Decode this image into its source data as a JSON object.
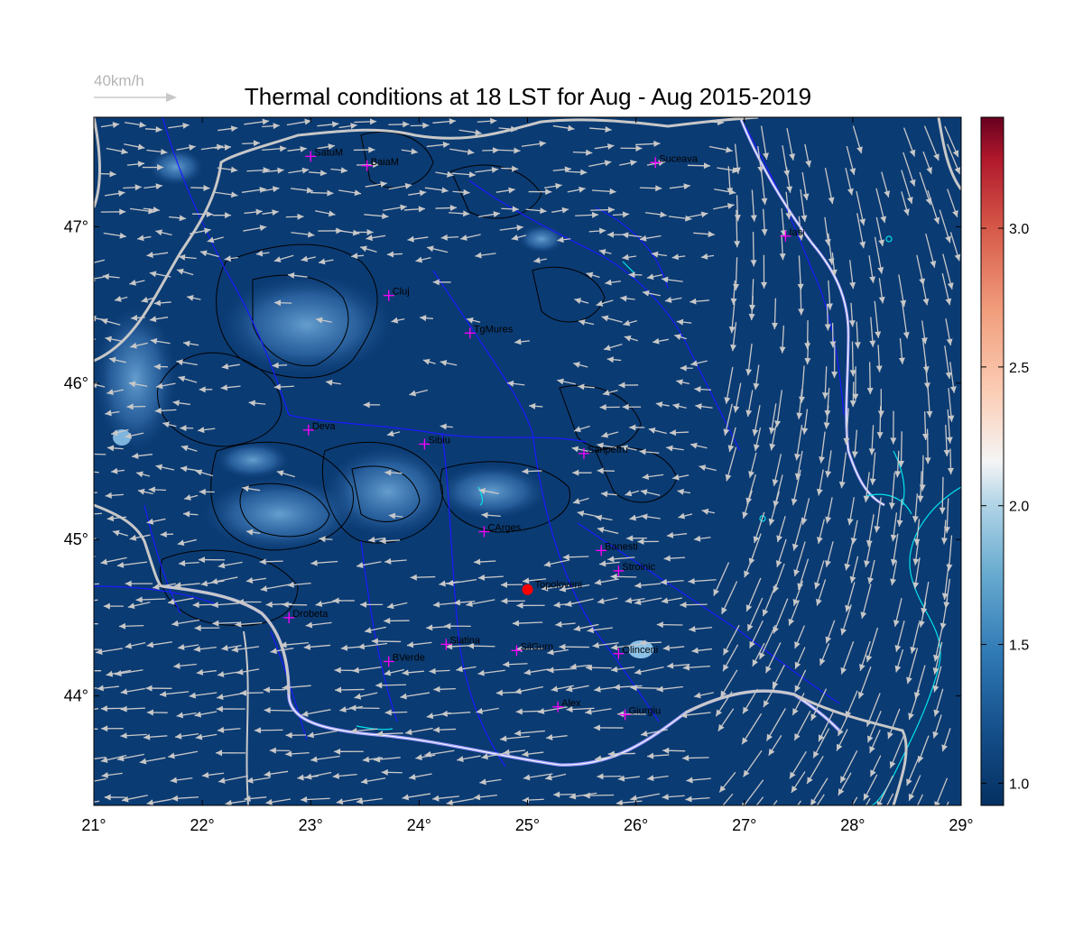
{
  "title": "Thermal conditions at 18 LST for Aug - Aug  2015-2019",
  "wind_scale": {
    "label": "40km/h",
    "speed_kmh": 40
  },
  "map": {
    "lon_range": [
      21,
      29
    ],
    "lat_range": [
      43.3,
      47.7
    ],
    "lon_ticks": [
      "21°",
      "22°",
      "23°",
      "24°",
      "25°",
      "26°",
      "27°",
      "28°",
      "29°"
    ],
    "lat_ticks": [
      {
        "lat": 47,
        "label": "47°"
      },
      {
        "lat": 46,
        "label": "46°"
      },
      {
        "lat": 45,
        "label": "45°"
      },
      {
        "lat": 44,
        "label": "44°"
      }
    ],
    "colors": {
      "background_field": "#0b3b73",
      "river": "#1a1aff",
      "border": "#c8c8c8",
      "lake": "#00e5ee",
      "city_marker": "#ff00ff",
      "highlight": "#ff0000",
      "wind_arrow": "#c8c8c8"
    }
  },
  "colorbar": {
    "min": 0.92,
    "max": 3.4,
    "ticks": [
      "1.0",
      "1.5",
      "2.0",
      "2.5",
      "3.0"
    ],
    "tick_values": [
      1.0,
      1.5,
      2.0,
      2.5,
      3.0
    ],
    "colormap": "RdBu_r"
  },
  "cities": [
    {
      "name": "SatuM",
      "lon": 23.0,
      "lat": 47.45
    },
    {
      "name": "BaiaM",
      "lon": 23.52,
      "lat": 47.39
    },
    {
      "name": "Suceava",
      "lon": 26.18,
      "lat": 47.41
    },
    {
      "name": "Iasi",
      "lon": 27.38,
      "lat": 46.94
    },
    {
      "name": "Cluj",
      "lon": 23.72,
      "lat": 46.56
    },
    {
      "name": "TgMures",
      "lon": 24.47,
      "lat": 46.32
    },
    {
      "name": "Deva",
      "lon": 22.98,
      "lat": 45.7
    },
    {
      "name": "Sibiu",
      "lon": 24.05,
      "lat": 45.61
    },
    {
      "name": "Sanpetru",
      "lon": 25.52,
      "lat": 45.55
    },
    {
      "name": "CArges",
      "lon": 24.6,
      "lat": 45.05
    },
    {
      "name": "Banesti",
      "lon": 25.68,
      "lat": 44.93
    },
    {
      "name": "Stroinic",
      "lon": 25.84,
      "lat": 44.8
    },
    {
      "name": "Drobeta",
      "lon": 22.8,
      "lat": 44.5
    },
    {
      "name": "Slatina",
      "lon": 24.25,
      "lat": 44.33
    },
    {
      "name": "SilGurn",
      "lon": 24.9,
      "lat": 44.29
    },
    {
      "name": "Olinceni",
      "lon": 25.84,
      "lat": 44.27
    },
    {
      "name": "BVerde",
      "lon": 23.72,
      "lat": 44.22
    },
    {
      "name": "Alex",
      "lon": 25.28,
      "lat": 43.93
    },
    {
      "name": "Giurgiu",
      "lon": 25.9,
      "lat": 43.88
    }
  ],
  "highlight_site": {
    "name": "Topoloveni",
    "lon": 25.0,
    "lat": 44.68
  }
}
